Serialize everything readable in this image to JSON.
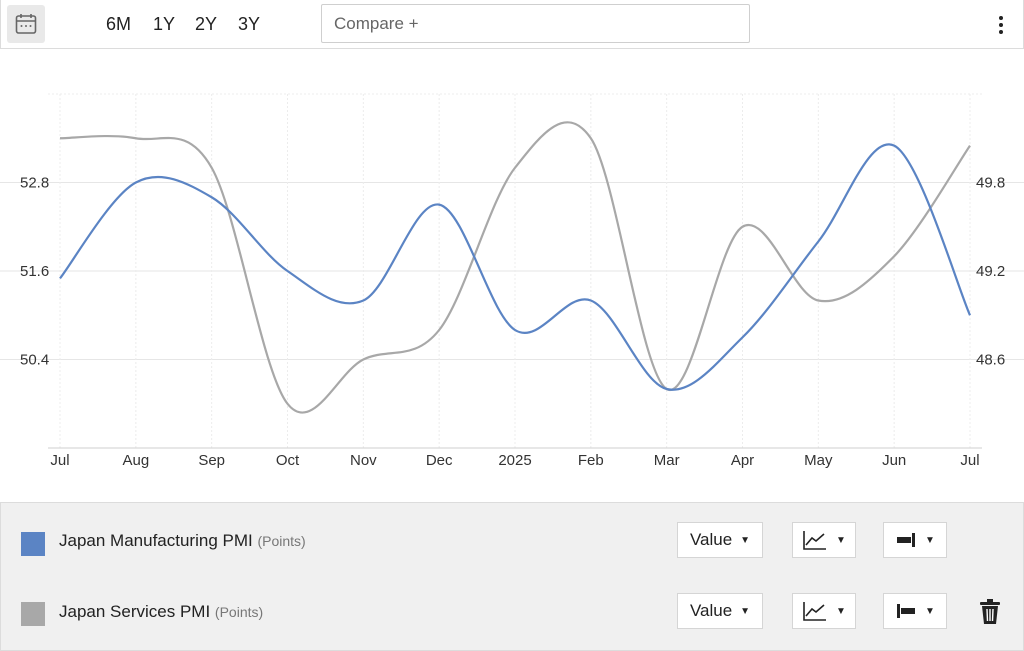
{
  "toolbar": {
    "ranges": [
      "6M",
      "1Y",
      "2Y",
      "3Y"
    ],
    "compare_placeholder": "Compare +"
  },
  "chart_data": {
    "type": "line",
    "x": [
      "Jul",
      "Aug",
      "Sep",
      "Oct",
      "Nov",
      "Dec",
      "2025",
      "Feb",
      "Mar",
      "Apr",
      "May",
      "Jun",
      "Jul"
    ],
    "series": [
      {
        "name": "Japan Manufacturing PMI",
        "axis": "left",
        "color": "#5b84c4",
        "values": [
          51.5,
          52.8,
          52.6,
          51.6,
          51.2,
          52.5,
          50.8,
          51.2,
          50.0,
          50.7,
          52.0,
          53.3,
          51.0
        ]
      },
      {
        "name": "Japan Services PMI",
        "axis": "right",
        "color": "#a8a8a8",
        "values": [
          50.1,
          50.1,
          49.9,
          48.3,
          48.6,
          48.8,
          49.9,
          50.1,
          48.4,
          49.5,
          49.0,
          49.3,
          50.05
        ]
      }
    ],
    "y_left_ticks": [
      "50.4",
      "51.6",
      "52.8"
    ],
    "y_right_ticks": [
      "48.6",
      "49.2",
      "49.8"
    ],
    "y_left_range": [
      49.2,
      54.0
    ],
    "y_right_range": [
      48.0,
      50.4
    ],
    "grid": true
  },
  "legend": {
    "rows": [
      {
        "name": "Japan Manufacturing PMI",
        "unit": "(Points)",
        "color": "#5b84c4",
        "mode": "Value",
        "axis_icon": "axis-left-icon"
      },
      {
        "name": "Japan Services PMI",
        "unit": "(Points)",
        "color": "#a8a8a8",
        "mode": "Value",
        "axis_icon": "axis-right-icon"
      }
    ]
  }
}
